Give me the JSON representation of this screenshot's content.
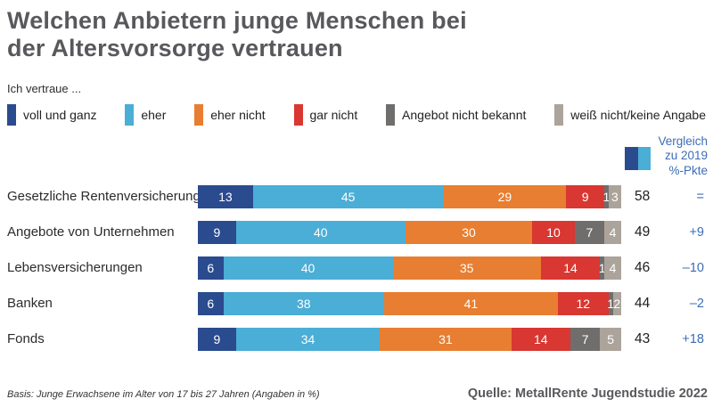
{
  "title": {
    "line1": "Welchen Anbietern junge Menschen bei",
    "line2": "der Altersvorsorge vertrauen"
  },
  "legend_intro": "Ich vertraue ...",
  "comparison_header": {
    "lines": [
      "Vergleich",
      "zu 2019",
      "%-Pkte"
    ],
    "icon_colors": [
      "#2B4B8F",
      "#4AAED6"
    ],
    "text_color": "#3D6DB7"
  },
  "chart_data": {
    "type": "bar",
    "stacked": true,
    "orientation": "horizontal",
    "unit": "percent",
    "xlim": [
      0,
      100
    ],
    "categories": [
      "Gesetzliche Rentenversicherung",
      "Angebote von Unternehmen",
      "Lebensversicherungen",
      "Banken",
      "Fonds"
    ],
    "series": [
      {
        "name": "voll und ganz",
        "color": "#2B4B8F",
        "values": [
          13,
          9,
          6,
          6,
          9
        ]
      },
      {
        "name": "eher",
        "color": "#4AAED6",
        "values": [
          45,
          40,
          40,
          38,
          34
        ]
      },
      {
        "name": "eher nicht",
        "color": "#E87E31",
        "values": [
          29,
          30,
          35,
          41,
          31
        ]
      },
      {
        "name": "gar nicht",
        "color": "#D93732",
        "values": [
          9,
          10,
          14,
          12,
          14
        ]
      },
      {
        "name": "Angebot nicht bekannt",
        "color": "#706D6D",
        "values": [
          1,
          7,
          1,
          1,
          7
        ]
      },
      {
        "name": "weiß nicht/keine Angabe",
        "color": "#ACA39B",
        "values": [
          3,
          4,
          4,
          2,
          5
        ]
      }
    ],
    "totals": [
      58,
      49,
      46,
      44,
      43
    ],
    "comparison_2019": [
      "=",
      "+9",
      "–10",
      "–2",
      "+18"
    ]
  },
  "footer": {
    "basis": "Basis: Junge Erwachsene im Alter von 17 bis 27 Jahren (Angaben in %)",
    "source": "Quelle: MetallRente Jugendstudie 2022"
  }
}
